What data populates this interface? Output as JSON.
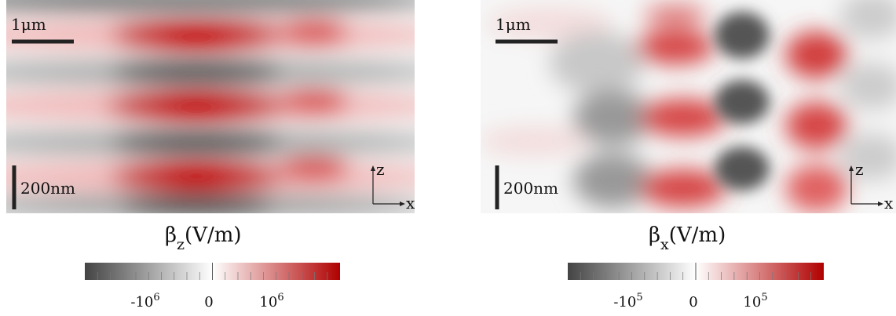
{
  "panels": [
    {
      "scale_bar_horizontal": "1μm",
      "scale_bar_vertical": "200nm",
      "axis_z": "z",
      "axis_x": "x",
      "colorbar_label": {
        "symbol": "β",
        "subscript": "z",
        "unit": "(V/m)"
      },
      "colorbar_ticks": [
        {
          "base": "-10",
          "exp": "6"
        },
        {
          "base": "0"
        },
        {
          "base": "10",
          "exp": "6"
        }
      ]
    },
    {
      "scale_bar_horizontal": "1μm",
      "scale_bar_vertical": "200nm",
      "axis_z": "z",
      "axis_x": "x",
      "colorbar_label": {
        "symbol": "β",
        "subscript": "x",
        "unit": "(V/m)"
      },
      "colorbar_ticks": [
        {
          "base": "-10",
          "exp": "5"
        },
        {
          "base": "0"
        },
        {
          "base": "10",
          "exp": "5"
        }
      ]
    }
  ]
}
